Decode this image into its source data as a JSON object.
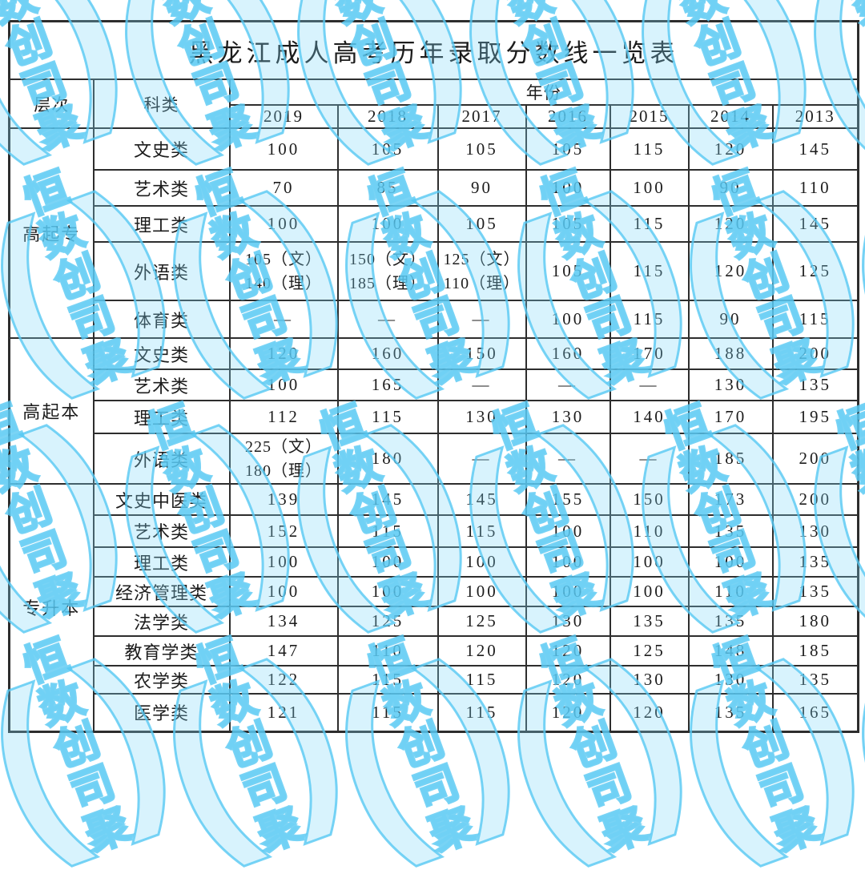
{
  "title": "黑龙江成人高考历年录取分数线一览表",
  "table": {
    "level_header": "层次",
    "category_header": "科类",
    "year_header": "年份",
    "years": [
      "2019",
      "2018",
      "2017",
      "2016",
      "2015",
      "2014",
      "2013"
    ],
    "groups": [
      {
        "level": "高起专",
        "rows": [
          {
            "category": "文史类",
            "values": [
              "100",
              "105",
              "105",
              "105",
              "115",
              "120",
              "145"
            ]
          },
          {
            "category": "艺术类",
            "values": [
              "70",
              "85",
              "90",
              "100",
              "100",
              "90",
              "110"
            ]
          },
          {
            "category": "理工类",
            "values": [
              "100",
              "100",
              "105",
              "105",
              "115",
              "120",
              "145"
            ]
          },
          {
            "category": "外语类",
            "values": [
              "105（文）\n140（理）",
              "150（文）\n185（理）",
              "125（文）\n110（理）",
              "105",
              "115",
              "120",
              "125"
            ]
          },
          {
            "category": "体育类",
            "values": [
              "—",
              "—",
              "—",
              "100",
              "115",
              "90",
              "115"
            ]
          }
        ]
      },
      {
        "level": "高起本",
        "rows": [
          {
            "category": "文史类",
            "values": [
              "120",
              "160",
              "150",
              "160",
              "170",
              "188",
              "200"
            ]
          },
          {
            "category": "艺术类",
            "values": [
              "100",
              "165",
              "—",
              "—",
              "—",
              "130",
              "135"
            ]
          },
          {
            "category": "理工类",
            "values": [
              "112",
              "115",
              "130",
              "130",
              "140",
              "170",
              "195"
            ]
          },
          {
            "category": "外语类",
            "values": [
              "225（文）\n180（理）",
              "180",
              "—",
              "—",
              "—",
              "185",
              "200"
            ]
          }
        ]
      },
      {
        "level": "专升本",
        "rows": [
          {
            "category": "文史中医类",
            "values": [
              "139",
              "145",
              "145",
              "155",
              "150",
              "173",
              "200"
            ]
          },
          {
            "category": "艺术类",
            "values": [
              "152",
              "115",
              "115",
              "100",
              "110",
              "135",
              "130"
            ]
          },
          {
            "category": "理工类",
            "values": [
              "100",
              "100",
              "100",
              "100",
              "100",
              "100",
              "135"
            ]
          },
          {
            "category": "经济管理类",
            "values": [
              "100",
              "100",
              "100",
              "100",
              "100",
              "110",
              "135"
            ]
          },
          {
            "category": "法学类",
            "values": [
              "134",
              "125",
              "125",
              "130",
              "135",
              "135",
              "180"
            ]
          },
          {
            "category": "教育学类",
            "values": [
              "147",
              "110",
              "120",
              "120",
              "125",
              "148",
              "185"
            ]
          },
          {
            "category": "农学类",
            "values": [
              "122",
              "115",
              "115",
              "120",
              "130",
              "130",
              "135"
            ]
          },
          {
            "category": "医学类",
            "values": [
              "121",
              "115",
              "115",
              "120",
              "120",
              "135",
              "165"
            ]
          }
        ]
      }
    ]
  },
  "watermark": {
    "open_bracket": "(",
    "close_bracket": ")",
    "characters": [
      "恒",
      "数",
      "创",
      "司",
      "聚"
    ],
    "color": "#56c8f3"
  }
}
